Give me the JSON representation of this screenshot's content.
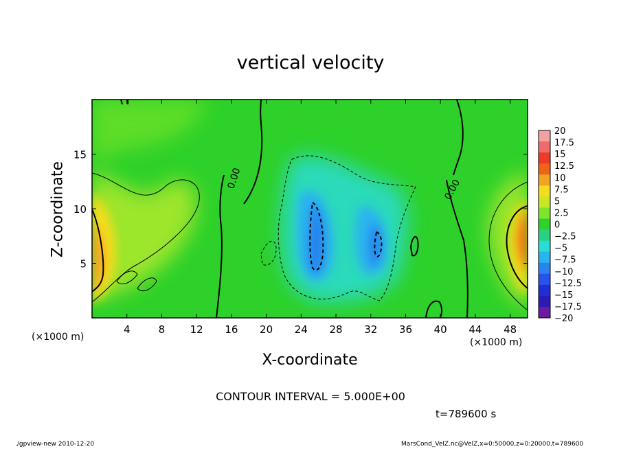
{
  "chart_data": {
    "type": "heatmap",
    "title": "vertical velocity",
    "xlabel": "X-coordinate",
    "ylabel": "Z-coordinate",
    "x_unit": "(×1000 m)",
    "y_unit": "(×1000 m)",
    "xlim": [
      0,
      50
    ],
    "ylim": [
      0,
      20
    ],
    "x_ticks": [
      4,
      8,
      12,
      16,
      20,
      24,
      28,
      32,
      36,
      40,
      44,
      48
    ],
    "y_ticks": [
      5,
      10,
      15
    ],
    "contour_interval": "CONTOUR INTERVAL = 5.000E+00",
    "contour_labels": [
      "0.00",
      "0.00"
    ],
    "colorbar": {
      "levels": [
        "20",
        "17.5",
        "15",
        "12.5",
        "10",
        "7.5",
        "5",
        "2.5",
        "0",
        "−2.5",
        "−5",
        "−7.5",
        "−10",
        "−12.5",
        "−15",
        "−17.5",
        "−20"
      ],
      "colors": [
        "#f4a0a0",
        "#ef6b6b",
        "#ef3a2a",
        "#f06418",
        "#f4a320",
        "#f5dc1e",
        "#c8e825",
        "#7ee62a",
        "#2ed12a",
        "#27d383",
        "#29dcd5",
        "#2ab4ef",
        "#2883ef",
        "#2852ec",
        "#1f2ed6",
        "#2b1ab3",
        "#6a1aa6"
      ]
    },
    "time": "t=789600 s"
  },
  "footer": {
    "left": "./gpview-new  2010-12-20",
    "right": "MarsCond_VelZ.nc@VelZ,x=0:50000,z=0:20000,t=789600"
  },
  "colors": {
    "background": "#2ed12a",
    "positive": "#f23a22",
    "negative": "#2883ef"
  }
}
